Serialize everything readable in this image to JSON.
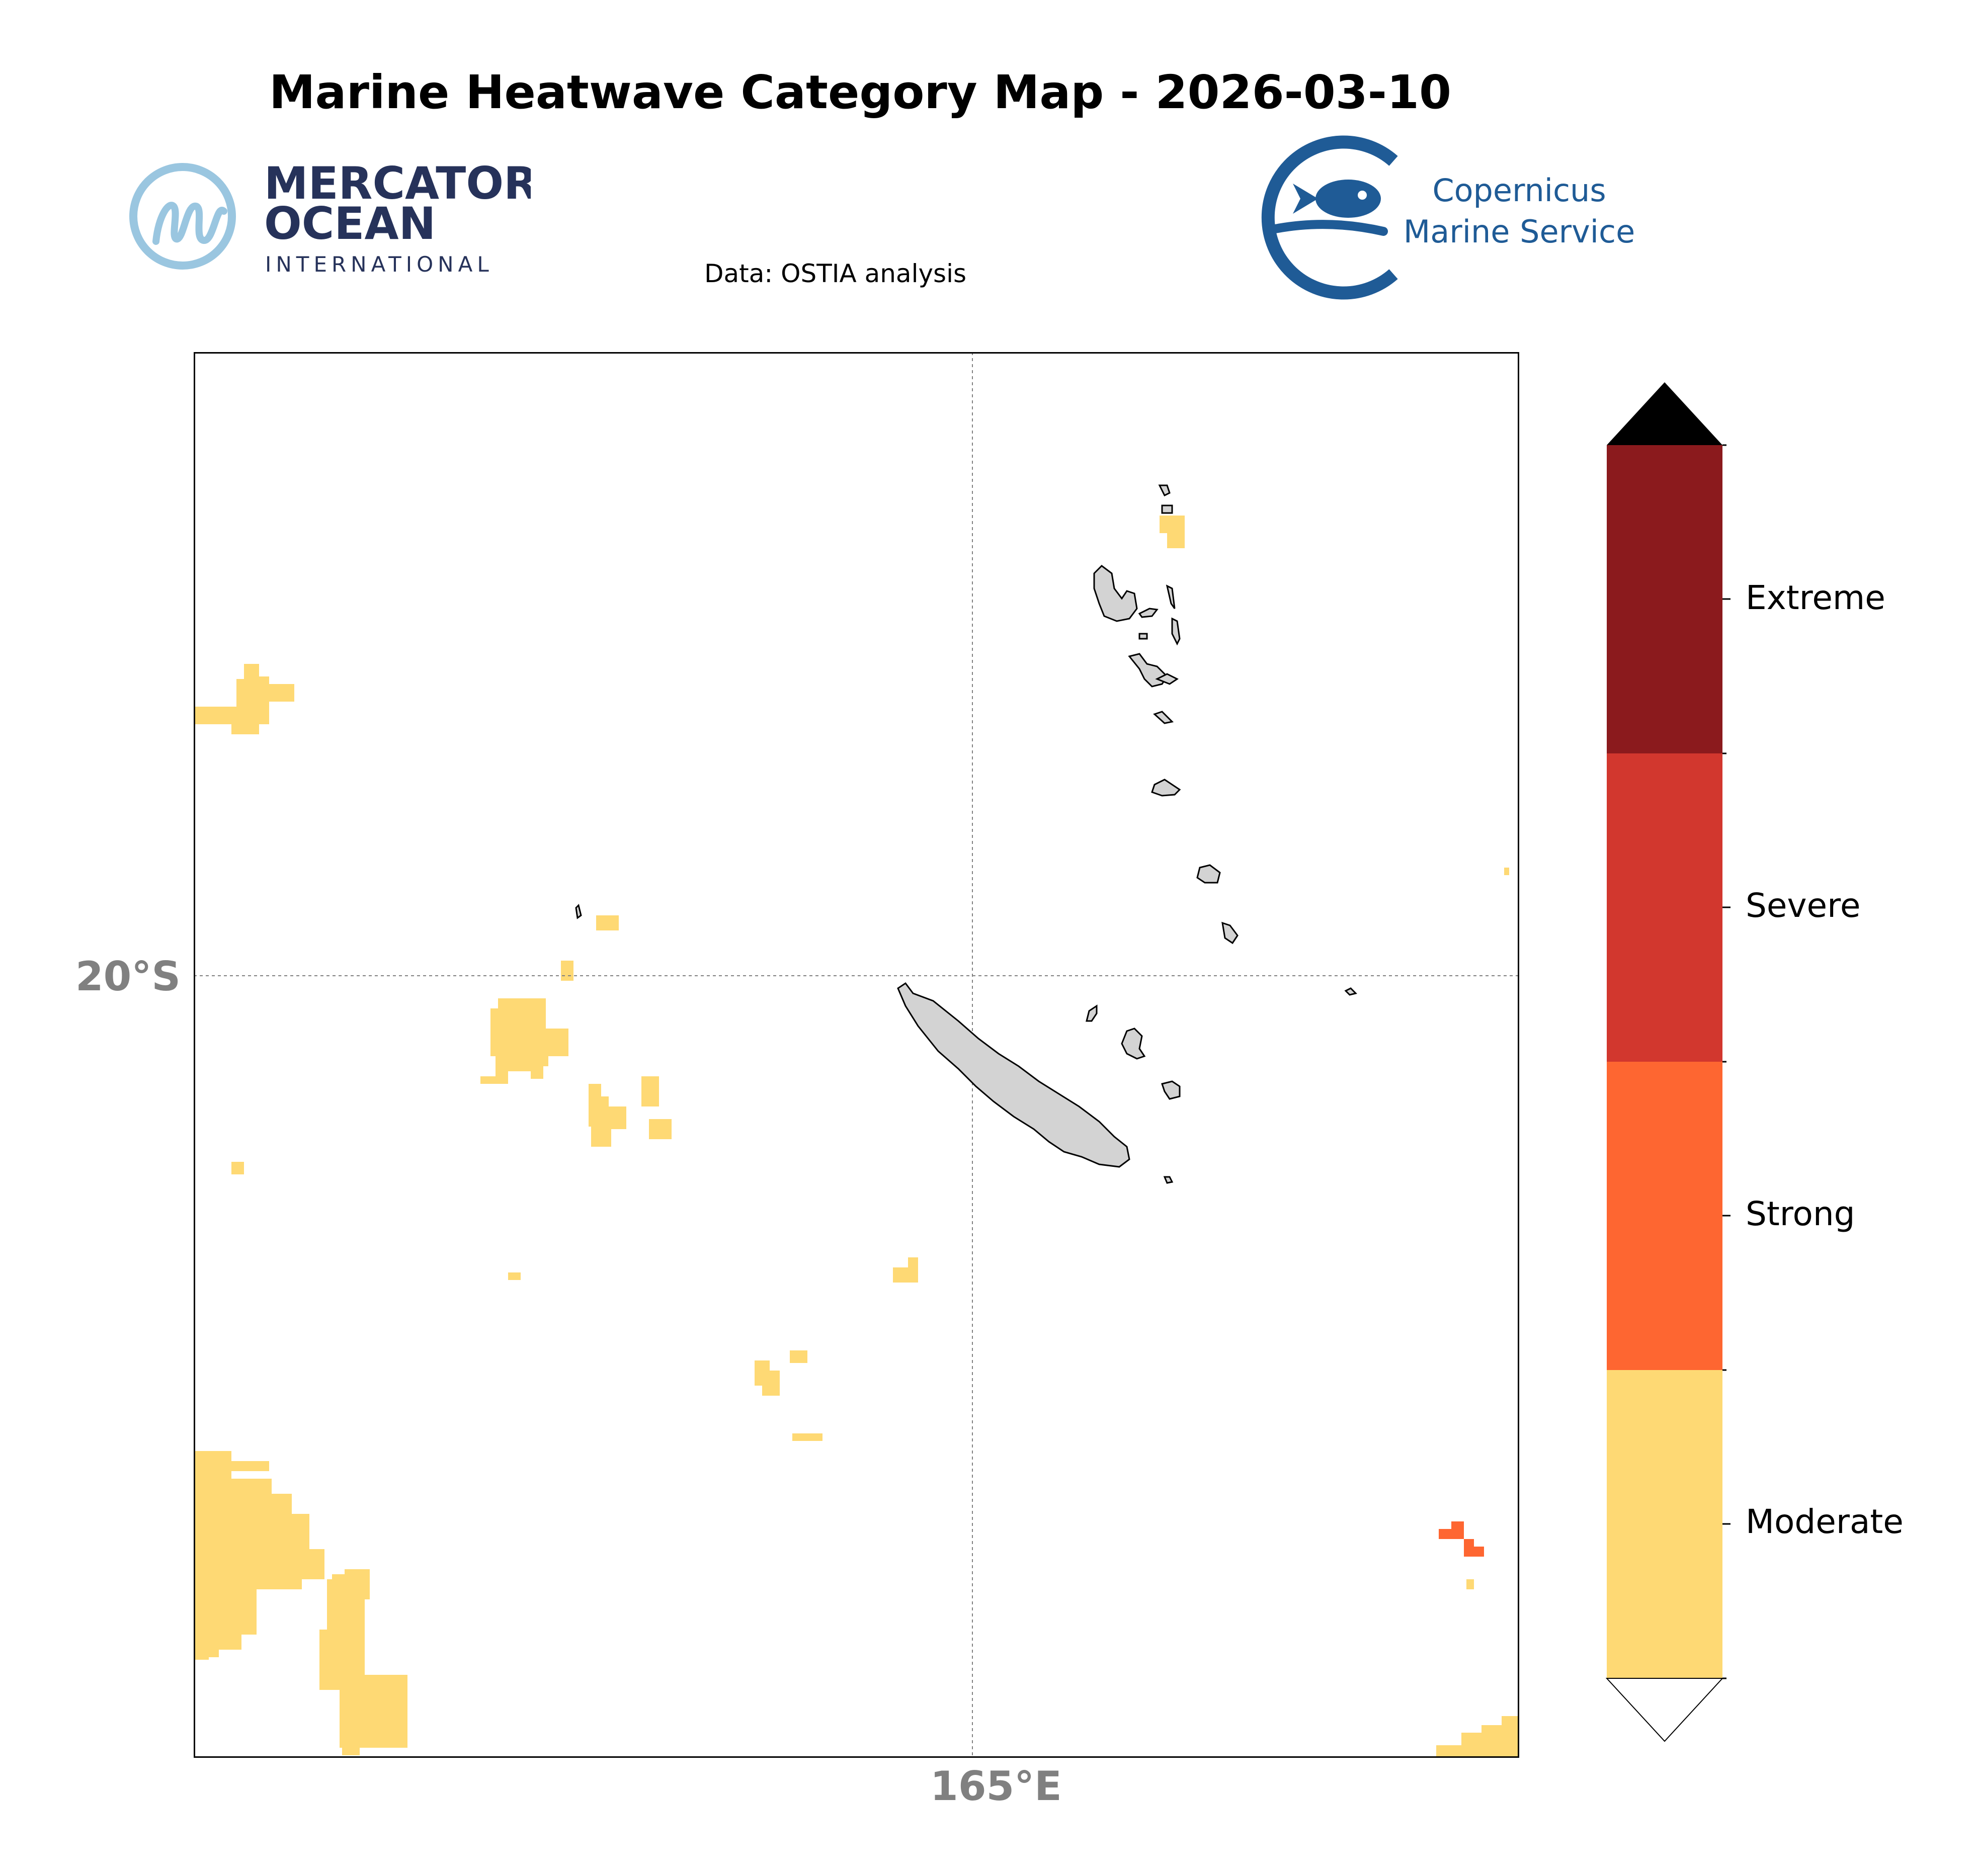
{
  "title": "Marine Heatwave Category Map - 2026-03-10",
  "data_source": "Data: OSTIA analysis",
  "logos": {
    "mercator": {
      "line1": "MERCATOR",
      "line2": "OCEAN",
      "line3": "INTERNATIONAL"
    },
    "copernicus": {
      "line1": "Copernicus",
      "line2": "Marine Service"
    }
  },
  "map": {
    "latitude_label": "20°S",
    "longitude_label": "165°E",
    "gridlines": "dotted",
    "land_color": "#d3d3d3",
    "ocean_color": "#ffffff"
  },
  "legend": {
    "categories": [
      {
        "label": "Extreme",
        "color": "#8b1a1d"
      },
      {
        "label": "Severe",
        "color": "#d2372e"
      },
      {
        "label": "Strong",
        "color": "#fe6631"
      },
      {
        "label": "Moderate",
        "color": "#fed974"
      }
    ],
    "extend_max_color": "#000000",
    "extend_min_color": "#ffffff"
  },
  "colors": {
    "mercator_dark": "#26325a",
    "mercator_light": "#9ac6e0",
    "copernicus_blue": "#1f5b96"
  }
}
